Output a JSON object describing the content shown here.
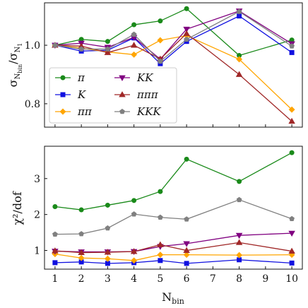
{
  "chart_data": [
    {
      "type": "line",
      "panel": "top",
      "ylabel": "σ_{N_bin}/σ_{N_1}",
      "ylabel_main": "σ",
      "ylabel_sub": "N",
      "ylabel_subsub": "bin",
      "ylabel_den_main": "σ",
      "ylabel_den_sub": "N",
      "ylabel_den_subsub": "1",
      "xlim": [
        0.6,
        10.4
      ],
      "ylim": [
        0.72,
        1.145
      ],
      "yticks": [
        0.8,
        1.0
      ],
      "ytick_labels": [
        "0.8",
        "1.0"
      ],
      "grid": false,
      "legend": {
        "placement": "bottom-left",
        "columns": 2
      },
      "x": [
        1,
        2,
        3,
        4,
        5,
        6,
        8,
        10
      ],
      "series": [
        {
          "name": "π",
          "color": "#1a8a1a",
          "marker": "circle",
          "values": [
            1.0,
            1.02,
            1.013,
            1.07,
            1.083,
            1.125,
            0.965,
            1.018
          ]
        },
        {
          "name": "K",
          "color": "#1010e0",
          "marker": "square",
          "values": [
            1.0,
            0.98,
            0.983,
            1.025,
            0.937,
            1.013,
            1.1,
            0.975
          ]
        },
        {
          "name": "ππ",
          "color": "#ffa500",
          "marker": "diamond",
          "values": [
            1.0,
            0.99,
            0.977,
            0.968,
            1.017,
            1.033,
            0.952,
            0.78
          ]
        },
        {
          "name": "KK",
          "color": "#800080",
          "marker": "triangle-down",
          "values": [
            1.0,
            1.007,
            0.993,
            1.027,
            0.952,
            1.055,
            1.117,
            1.005
          ]
        },
        {
          "name": "πππ",
          "color": "#a02828",
          "marker": "triangle-up",
          "values": [
            1.0,
            0.997,
            0.975,
            1.0,
            0.953,
            1.04,
            0.9,
            0.74
          ]
        },
        {
          "name": "KKK",
          "color": "#808080",
          "marker": "pentagon",
          "values": [
            1.0,
            0.987,
            0.987,
            1.037,
            0.945,
            1.02,
            1.115,
            0.997
          ]
        }
      ]
    },
    {
      "type": "line",
      "panel": "bottom",
      "ylabel": "χ²/dof",
      "ylabel_text": "χ²/dof",
      "xlabel": "N_bin",
      "xlabel_main": "N",
      "xlabel_sub": "bin",
      "xlim": [
        0.6,
        10.4
      ],
      "ylim": [
        0.48,
        3.9
      ],
      "xticks": [
        1,
        2,
        3,
        4,
        5,
        6,
        7,
        8,
        9,
        10
      ],
      "xtick_labels": [
        "1",
        "2",
        "3",
        "4",
        "5",
        "6",
        "7",
        "8",
        "9",
        "10"
      ],
      "yticks": [
        1,
        2,
        3
      ],
      "ytick_labels": [
        "1",
        "2",
        "3"
      ],
      "grid": false,
      "x": [
        1,
        2,
        3,
        4,
        5,
        6,
        8,
        10
      ],
      "series": [
        {
          "name": "π",
          "color": "#1a8a1a",
          "marker": "circle",
          "values": [
            2.22,
            2.13,
            2.26,
            2.39,
            2.64,
            3.54,
            2.92,
            3.72
          ]
        },
        {
          "name": "K",
          "color": "#1010e0",
          "marker": "square",
          "values": [
            0.66,
            0.68,
            0.64,
            0.66,
            0.72,
            0.64,
            0.74,
            0.65
          ]
        },
        {
          "name": "ππ",
          "color": "#ffa500",
          "marker": "diamond",
          "values": [
            0.9,
            0.79,
            0.77,
            0.72,
            0.88,
            0.88,
            0.87,
            0.88
          ]
        },
        {
          "name": "KK",
          "color": "#800080",
          "marker": "triangle-down",
          "values": [
            0.98,
            0.96,
            0.96,
            0.97,
            1.11,
            1.19,
            1.42,
            1.48
          ]
        },
        {
          "name": "πππ",
          "color": "#a02828",
          "marker": "triangle-up",
          "values": [
            0.99,
            0.94,
            0.95,
            0.97,
            1.16,
            1.0,
            1.22,
            0.98
          ]
        },
        {
          "name": "KKK",
          "color": "#808080",
          "marker": "pentagon",
          "values": [
            1.45,
            1.46,
            1.62,
            2.01,
            1.92,
            1.87,
            2.41,
            1.88
          ]
        }
      ]
    }
  ]
}
